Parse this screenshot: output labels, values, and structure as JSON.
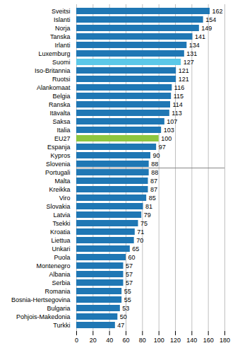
{
  "chart_data": {
    "type": "bar",
    "orientation": "horizontal",
    "categories": [
      "Sveitsi",
      "Islanti",
      "Norja",
      "Tanska",
      "Irlanti",
      "Luxemburg",
      "Suomi",
      "Iso-Britannia",
      "Ruotsi",
      "Alankomaat",
      "Belgia",
      "Ranska",
      "Itävalta",
      "Saksa",
      "Italia",
      "EU27",
      "Espanja",
      "Kypros",
      "Slovenia",
      "Portugali",
      "Malta",
      "Kreikka",
      "Viro",
      "Slovakia",
      "Latvia",
      "Tsekki",
      "Kroatia",
      "Liettua",
      "Unkari",
      "Puola",
      "Montenegro",
      "Albania",
      "Serbia",
      "Romania",
      "Bosnia-Hertsegovina",
      "Bulgaria",
      "Pohjois-Makedonia",
      "Turkki"
    ],
    "values": [
      162,
      154,
      149,
      141,
      134,
      131,
      127,
      121,
      121,
      116,
      115,
      114,
      113,
      107,
      103,
      100,
      97,
      90,
      88,
      88,
      87,
      87,
      85,
      81,
      79,
      75,
      71,
      70,
      65,
      60,
      57,
      57,
      57,
      55,
      55,
      53,
      50,
      47
    ],
    "colors": [
      "#1F77B4",
      "#1F77B4",
      "#1F77B4",
      "#1F77B4",
      "#1F77B4",
      "#1F77B4",
      "#5BC8E8",
      "#1F77B4",
      "#1F77B4",
      "#1F77B4",
      "#1F77B4",
      "#1F77B4",
      "#1F77B4",
      "#1F77B4",
      "#1F77B4",
      "#8DC63F",
      "#1F77B4",
      "#1F77B4",
      "#1F77B4",
      "#1F77B4",
      "#1F77B4",
      "#1F77B4",
      "#1F77B4",
      "#1F77B4",
      "#1F77B4",
      "#1F77B4",
      "#1F77B4",
      "#1F77B4",
      "#1F77B4",
      "#1F77B4",
      "#1F77B4",
      "#1F77B4",
      "#1F77B4",
      "#1F77B4",
      "#1F77B4",
      "#1F77B4",
      "#1F77B4",
      "#1F77B4"
    ],
    "xlim": [
      0,
      180
    ],
    "xticks": [
      0,
      20,
      40,
      60,
      80,
      100,
      120,
      140,
      160,
      180
    ],
    "grid": true,
    "data_labels": true
  }
}
